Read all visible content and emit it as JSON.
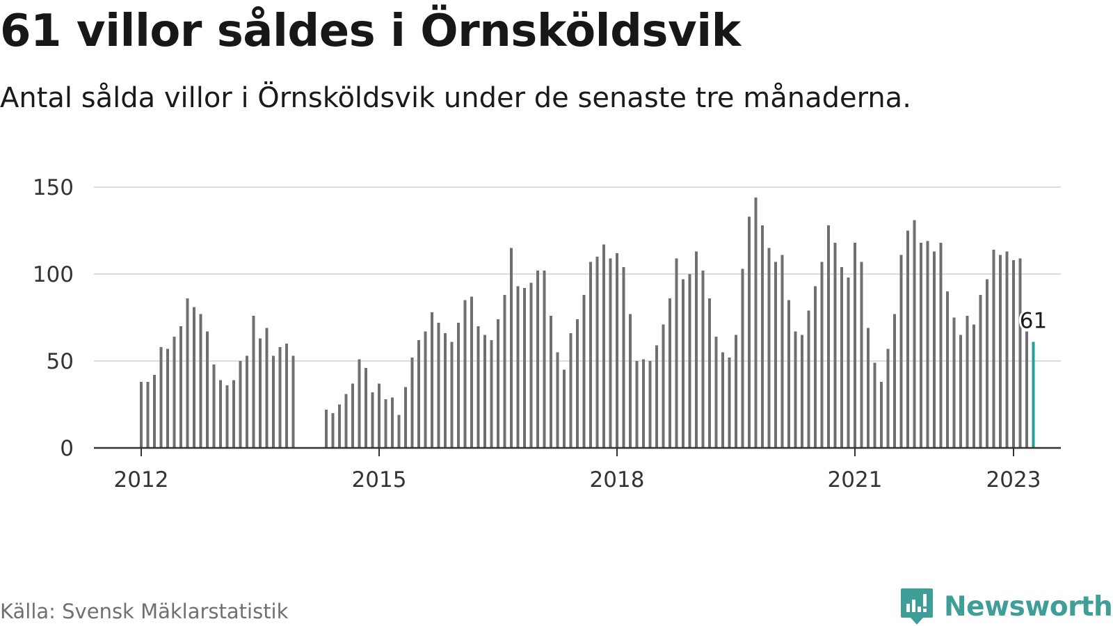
{
  "title": "61 villor såldes i Örnsköldsvik",
  "subtitle": "Antal sålda villor i Örnsköldsvik under de senaste tre månaderna.",
  "source": "Källa: Svensk Mäklarstatistik",
  "brand": {
    "name": "Newsworthy",
    "color": "#3f9e98"
  },
  "colors": {
    "bar": "#6f6f73",
    "highlight": "#21a195",
    "grid": "#dcdcdc",
    "axis": "#333333"
  },
  "chart_data": {
    "type": "bar",
    "ylim": [
      0,
      150
    ],
    "yticks": [
      0,
      50,
      100,
      150
    ],
    "yticks_labels": [
      "0",
      "50",
      "100",
      "150"
    ],
    "xticks_labels": [
      "2012",
      "2015",
      "2018",
      "2021",
      "2023"
    ],
    "grid": true,
    "x_start": "2012-01",
    "x_end": "2023-01",
    "values": [
      38,
      38,
      42,
      58,
      57,
      64,
      70,
      86,
      81,
      77,
      67,
      48,
      39,
      36,
      39,
      50,
      53,
      76,
      63,
      69,
      53,
      58,
      60,
      53,
      null,
      null,
      null,
      null,
      22,
      20,
      25,
      31,
      37,
      51,
      46,
      32,
      37,
      28,
      29,
      19,
      35,
      52,
      62,
      67,
      78,
      72,
      66,
      61,
      72,
      85,
      87,
      70,
      65,
      62,
      74,
      88,
      115,
      93,
      92,
      95,
      102,
      102,
      76,
      55,
      45,
      66,
      74,
      88,
      107,
      110,
      117,
      109,
      112,
      104,
      77,
      50,
      51,
      50,
      59,
      71,
      86,
      109,
      97,
      100,
      113,
      102,
      86,
      64,
      55,
      52,
      65,
      103,
      133,
      144,
      128,
      115,
      107,
      111,
      85,
      67,
      65,
      79,
      93,
      107,
      128,
      118,
      104,
      98,
      118,
      107,
      69,
      49,
      38,
      57,
      77,
      111,
      125,
      131,
      118,
      119,
      113,
      118,
      90,
      75,
      65,
      76,
      71,
      88,
      97,
      114,
      111,
      113,
      108,
      109,
      67,
      61
    ],
    "annotation": {
      "label": "61",
      "value": 61
    }
  }
}
